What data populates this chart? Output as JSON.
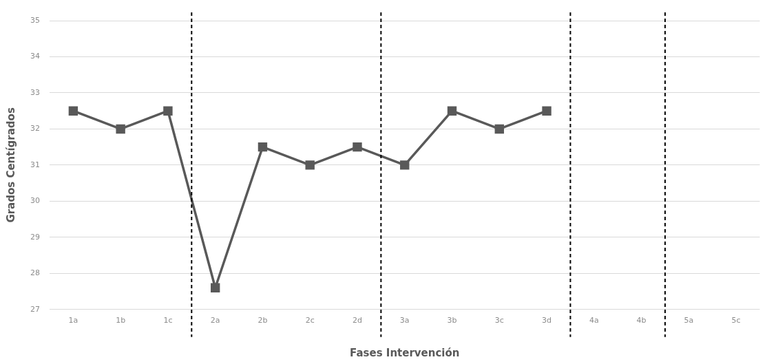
{
  "chart_data": {
    "type": "line",
    "xlabel": "Fases Intervención",
    "ylabel": "Grados Centígrados",
    "categories": [
      "1a",
      "1b",
      "1c",
      "2a",
      "2b",
      "2c",
      "2d",
      "3a",
      "3b",
      "3c",
      "3d",
      "4a",
      "4b",
      "5a",
      "5c"
    ],
    "series": [
      {
        "color": "#595959",
        "values": [
          32.5,
          32,
          32.5,
          27.6,
          31.5,
          31,
          31.5,
          31,
          32.5,
          32,
          32.5,
          null,
          null,
          null,
          null
        ]
      }
    ],
    "ylim": [
      27,
      35
    ],
    "yticks": [
      27,
      28,
      29,
      30,
      31,
      32,
      33,
      34,
      35
    ],
    "grid": "y",
    "legend": false,
    "marker": "square",
    "line_style": "solid"
  }
}
